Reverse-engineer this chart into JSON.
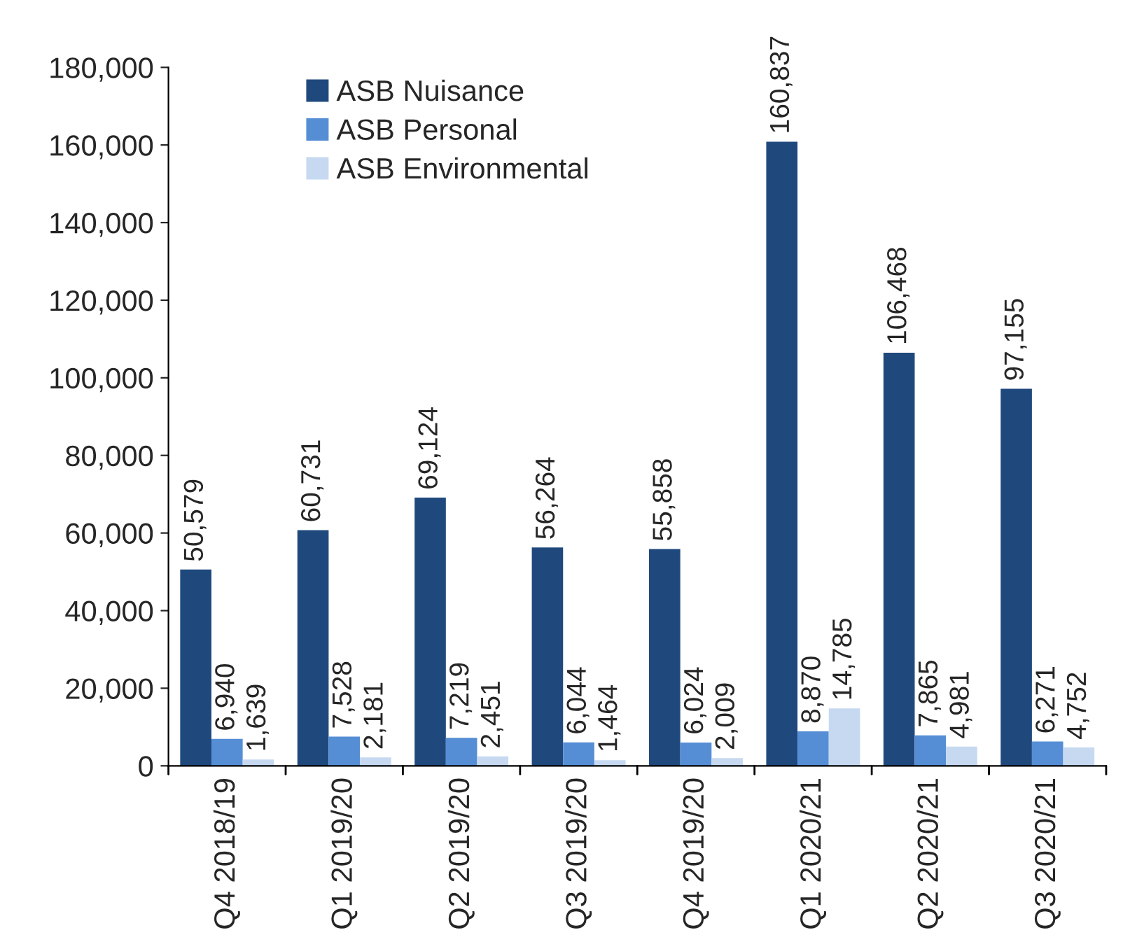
{
  "chart_data": {
    "type": "bar",
    "categories": [
      "Q4 2018/19",
      "Q1 2019/20",
      "Q2 2019/20",
      "Q3 2019/20",
      "Q4 2019/20",
      "Q1 2020/21",
      "Q2 2020/21",
      "Q3 2020/21"
    ],
    "series": [
      {
        "name": "ASB Nuisance",
        "color": "#1f497d",
        "values": [
          50579,
          60731,
          69124,
          56264,
          55858,
          160837,
          106468,
          97155
        ],
        "value_labels": [
          "50,579",
          "60,731",
          "69,124",
          "56,264",
          "55,858",
          "160,837",
          "106,468",
          "97,155"
        ]
      },
      {
        "name": "ASB Personal",
        "color": "#558ed5",
        "values": [
          6940,
          7528,
          7219,
          6044,
          6024,
          8870,
          7865,
          6271
        ],
        "value_labels": [
          "6,940",
          "7,528",
          "7,219",
          "6,044",
          "6,024",
          "8,870",
          "7,865",
          "6,271"
        ]
      },
      {
        "name": "ASB Environmental",
        "color": "#c6d9f1",
        "values": [
          1639,
          2181,
          2451,
          1464,
          2009,
          14785,
          4981,
          4752
        ],
        "value_labels": [
          "1,639",
          "2,181",
          "2,451",
          "1,464",
          "2,009",
          "14,785",
          "4,981",
          "4,752"
        ]
      }
    ],
    "ylim": [
      0,
      180000
    ],
    "yticks": [
      0,
      {
        "value": 20000,
        "label": "20,000"
      },
      {
        "value": 40000,
        "label": "40,000"
      },
      {
        "value": 60000,
        "label": "60,000"
      },
      {
        "value": 80000,
        "label": "80,000"
      },
      {
        "value": 100000,
        "label": "100,000"
      },
      {
        "value": 120000,
        "label": "120,000"
      },
      {
        "value": 140000,
        "label": "140,000"
      },
      {
        "value": 160000,
        "label": "160,000"
      },
      {
        "value": 180000,
        "label": "180,000"
      }
    ],
    "grid": false,
    "legend": "top left"
  }
}
